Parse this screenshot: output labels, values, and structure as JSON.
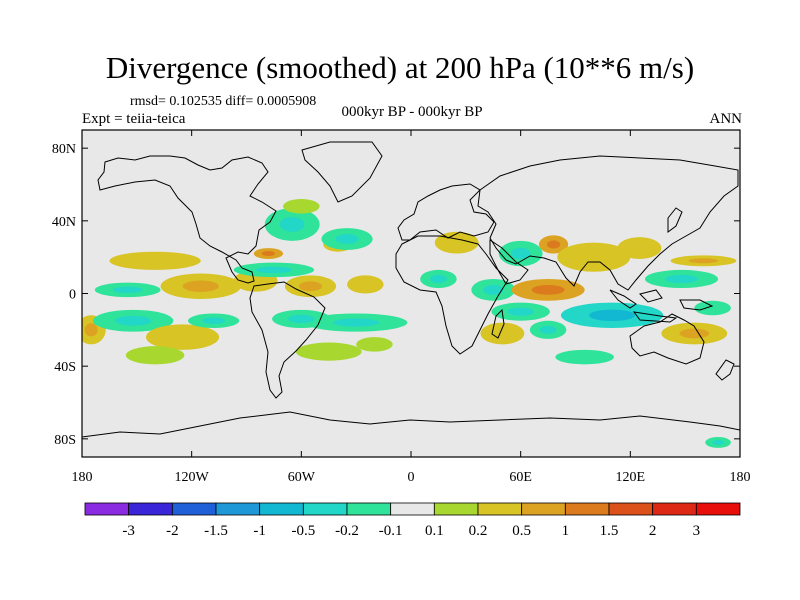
{
  "header": {
    "title": "Divergence (smoothed) at 200 hPa (10**6 m/s)",
    "stats": "rmsd= 0.102535  diff= 0.0005908",
    "expt": "Expt = teiia-teica",
    "period": "000kyr BP - 000kyr BP",
    "season": "ANN"
  },
  "chart_data": {
    "type": "heatmap",
    "projection": "cylindrical equidistant",
    "xlim": [
      -180,
      180
    ],
    "ylim": [
      -90,
      90
    ],
    "xticks": [
      -180,
      -120,
      -60,
      0,
      60,
      120,
      180
    ],
    "xtick_labels": [
      "180",
      "120W",
      "60W",
      "0",
      "60E",
      "120E",
      "180"
    ],
    "yticks": [
      80,
      40,
      0,
      -40,
      -80
    ],
    "ytick_labels": [
      "80N",
      "40N",
      "0",
      "40S",
      "80S"
    ],
    "colorbar": {
      "levels": [
        "-3",
        "-2",
        "-1.5",
        "-1",
        "-0.5",
        "-0.2",
        "-0.1",
        "0.1",
        "0.2",
        "0.5",
        "1",
        "1.5",
        "2",
        "3"
      ],
      "colors": [
        "#8a2be2",
        "#3b25d8",
        "#1f5fd8",
        "#1f98d8",
        "#12b8d2",
        "#22d6c8",
        "#2fe39a",
        "#e8e8e8",
        "#a8d830",
        "#d8c425",
        "#dca222",
        "#dc7a1e",
        "#dc511a",
        "#dc2814",
        "#e80e0a"
      ]
    },
    "blobs": [
      {
        "lon": -175,
        "lat": -20,
        "rx": 8,
        "ry": 8,
        "value": 0.3
      },
      {
        "lon": -140,
        "lat": 18,
        "rx": 25,
        "ry": 5,
        "value": 0.2
      },
      {
        "lon": -155,
        "lat": 2,
        "rx": 18,
        "ry": 4,
        "value": -0.2
      },
      {
        "lon": -115,
        "lat": 4,
        "rx": 22,
        "ry": 7,
        "value": 0.3
      },
      {
        "lon": -152,
        "lat": -15,
        "rx": 22,
        "ry": 6,
        "value": -0.2
      },
      {
        "lon": -125,
        "lat": -24,
        "rx": 20,
        "ry": 7,
        "value": 0.2
      },
      {
        "lon": -140,
        "lat": -34,
        "rx": 16,
        "ry": 5,
        "value": 0.15
      },
      {
        "lon": -108,
        "lat": -15,
        "rx": 14,
        "ry": 4,
        "value": -0.2
      },
      {
        "lon": -85,
        "lat": 7,
        "rx": 12,
        "ry": 6,
        "value": 0.2
      },
      {
        "lon": -40,
        "lat": 27,
        "rx": 8,
        "ry": 4,
        "value": 0.2
      },
      {
        "lon": -75,
        "lat": 13,
        "rx": 22,
        "ry": 4,
        "value": -0.2
      },
      {
        "lon": -78,
        "lat": 22,
        "rx": 8,
        "ry": 3,
        "value": 0.5
      },
      {
        "lon": -65,
        "lat": 38,
        "rx": 15,
        "ry": 9,
        "value": -0.2
      },
      {
        "lon": -35,
        "lat": 30,
        "rx": 14,
        "ry": 6,
        "value": -0.2
      },
      {
        "lon": -55,
        "lat": 4,
        "rx": 14,
        "ry": 6,
        "value": 0.3
      },
      {
        "lon": -25,
        "lat": 5,
        "rx": 10,
        "ry": 5,
        "value": 0.2
      },
      {
        "lon": -30,
        "lat": -16,
        "rx": 28,
        "ry": 5,
        "value": -0.2
      },
      {
        "lon": -60,
        "lat": -14,
        "rx": 16,
        "ry": 5,
        "value": -0.2
      },
      {
        "lon": -45,
        "lat": -32,
        "rx": 18,
        "ry": 5,
        "value": 0.15
      },
      {
        "lon": -20,
        "lat": -28,
        "rx": 10,
        "ry": 4,
        "value": 0.15
      },
      {
        "lon": 25,
        "lat": 28,
        "rx": 12,
        "ry": 6,
        "value": 0.2
      },
      {
        "lon": 15,
        "lat": 8,
        "rx": 10,
        "ry": 5,
        "value": -0.2
      },
      {
        "lon": 45,
        "lat": 2,
        "rx": 12,
        "ry": 6,
        "value": -0.2
      },
      {
        "lon": 60,
        "lat": 22,
        "rx": 12,
        "ry": 7,
        "value": -0.2
      },
      {
        "lon": 78,
        "lat": 27,
        "rx": 8,
        "ry": 5,
        "value": 0.5
      },
      {
        "lon": 75,
        "lat": 2,
        "rx": 20,
        "ry": 6,
        "value": 0.5
      },
      {
        "lon": 60,
        "lat": -10,
        "rx": 16,
        "ry": 5,
        "value": -0.2
      },
      {
        "lon": 50,
        "lat": -22,
        "rx": 12,
        "ry": 6,
        "value": 0.2
      },
      {
        "lon": 75,
        "lat": -20,
        "rx": 10,
        "ry": 5,
        "value": -0.2
      },
      {
        "lon": 110,
        "lat": -12,
        "rx": 28,
        "ry": 7,
        "value": -0.3
      },
      {
        "lon": 100,
        "lat": 20,
        "rx": 20,
        "ry": 8,
        "value": 0.2
      },
      {
        "lon": 125,
        "lat": 25,
        "rx": 12,
        "ry": 6,
        "value": 0.2
      },
      {
        "lon": 148,
        "lat": 8,
        "rx": 20,
        "ry": 5,
        "value": -0.2
      },
      {
        "lon": 160,
        "lat": 18,
        "rx": 18,
        "ry": 3,
        "value": 0.3
      },
      {
        "lon": 155,
        "lat": -22,
        "rx": 18,
        "ry": 6,
        "value": 0.3
      },
      {
        "lon": 165,
        "lat": -8,
        "rx": 10,
        "ry": 4,
        "value": -0.15
      },
      {
        "lon": 168,
        "lat": -82,
        "rx": 7,
        "ry": 3,
        "value": -0.2
      },
      {
        "lon": 95,
        "lat": -35,
        "rx": 16,
        "ry": 4,
        "value": -0.15
      },
      {
        "lon": -60,
        "lat": 48,
        "rx": 10,
        "ry": 4,
        "value": 0.15
      }
    ]
  }
}
